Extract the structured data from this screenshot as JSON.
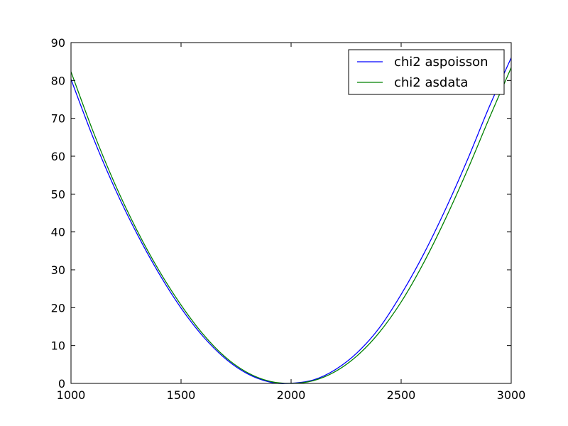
{
  "chart_data": {
    "type": "line",
    "title": "",
    "xlabel": "",
    "ylabel": "",
    "xlim": [
      1000,
      3000
    ],
    "ylim": [
      0,
      90
    ],
    "xticks": [
      1000,
      1500,
      2000,
      2500,
      3000
    ],
    "yticks": [
      0,
      10,
      20,
      30,
      40,
      50,
      60,
      70,
      80,
      90
    ],
    "grid": false,
    "legend_position": "top-right",
    "series": [
      {
        "name": "chi2 aspoisson",
        "color": "#0000ff",
        "x": [
          1000,
          1100,
          1200,
          1300,
          1400,
          1500,
          1600,
          1700,
          1800,
          1900,
          1985,
          2100,
          2200,
          2300,
          2400,
          2500,
          2600,
          2700,
          2800,
          2900,
          3000
        ],
        "y": [
          80.3,
          65.0,
          51.4,
          39.5,
          29.0,
          19.9,
          12.4,
          6.6,
          2.6,
          0.4,
          0.0,
          0.9,
          3.6,
          8.1,
          14.6,
          23.5,
          33.9,
          45.8,
          58.9,
          73.0,
          86.0
        ]
      },
      {
        "name": "chi2 asdata",
        "color": "#008000",
        "x": [
          1000,
          1100,
          1200,
          1300,
          1400,
          1500,
          1600,
          1700,
          1800,
          1900,
          2000,
          2100,
          2200,
          2300,
          2400,
          2500,
          2600,
          2700,
          2800,
          2900,
          3000
        ],
        "y": [
          82.3,
          66.6,
          52.6,
          40.4,
          29.8,
          20.7,
          13.0,
          7.0,
          2.9,
          0.6,
          0.0,
          0.7,
          3.1,
          7.3,
          13.4,
          21.5,
          31.6,
          43.3,
          56.2,
          70.0,
          83.4
        ]
      }
    ]
  }
}
